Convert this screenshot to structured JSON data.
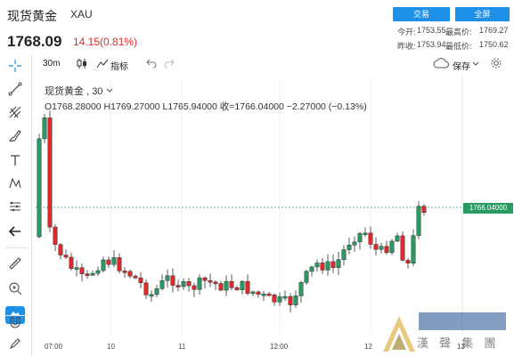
{
  "header": {
    "name": "现货黄金",
    "code": "XAU",
    "price": "1768.09",
    "change": "14.15(0.81%)",
    "buttons": {
      "trade": "交易",
      "fullscreen": "全屏"
    },
    "quote": {
      "open_label": "今开:",
      "open": "1753.55",
      "high_label": "最高价:",
      "high": "1769.27",
      "prev_label": "昨收:",
      "prev": "1753.94",
      "low_label": "最低价:",
      "low": "1750.62"
    }
  },
  "toolbar": {
    "interval": "30m",
    "indicators": "指标",
    "save": "保存"
  },
  "legend": {
    "title": "现货黄金",
    "interval": "30",
    "ohlc": "O1768.28000  H1769.27000  L1765.94000  收=1766.04000  −2.27000 (−0.13%)"
  },
  "price_tag": "1766.04000",
  "x_ticks": [
    "07:00",
    "10",
    "11",
    "12:00",
    "12",
    "13"
  ],
  "watermark": "漢 聲 集 團",
  "colors": {
    "up": "#e0292a",
    "down": "#2b9a62",
    "accent": "#1e90e8"
  },
  "chart_data": {
    "type": "candlestick",
    "last": 1766.04
  }
}
